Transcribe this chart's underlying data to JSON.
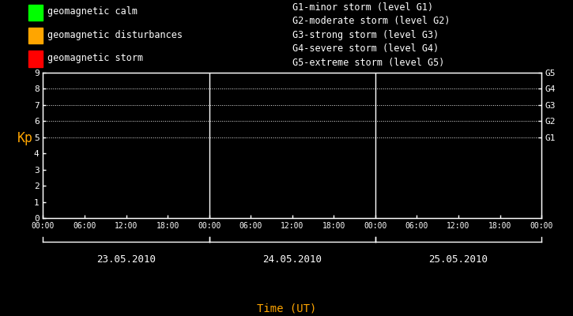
{
  "bg_color": "#000000",
  "fg_color": "#ffffff",
  "orange_color": "#FFA500",
  "dates": [
    "23.05.2010",
    "24.05.2010",
    "25.05.2010"
  ],
  "time_ticks": [
    "00:00",
    "06:00",
    "12:00",
    "18:00"
  ],
  "ylim": [
    0,
    9
  ],
  "yticks": [
    0,
    1,
    2,
    3,
    4,
    5,
    6,
    7,
    8,
    9
  ],
  "legend_items": [
    {
      "label": "geomagnetic calm",
      "color": "#00ff00"
    },
    {
      "label": "geomagnetic disturbances",
      "color": "#ffa500"
    },
    {
      "label": "geomagnetic storm",
      "color": "#ff0000"
    }
  ],
  "right_labels": [
    {
      "y": 5,
      "text": "G1"
    },
    {
      "y": 6,
      "text": "G2"
    },
    {
      "y": 7,
      "text": "G3"
    },
    {
      "y": 8,
      "text": "G4"
    },
    {
      "y": 9,
      "text": "G5"
    }
  ],
  "storm_levels": [
    {
      "text": "G1-minor storm (level G1)"
    },
    {
      "text": "G2-moderate storm (level G2)"
    },
    {
      "text": "G3-strong storm (level G3)"
    },
    {
      "text": "G4-severe storm (level G4)"
    },
    {
      "text": "G5-extreme storm (level G5)"
    }
  ],
  "xlabel": "Time (UT)",
  "ylabel": "Kp",
  "num_days": 3,
  "ticks_per_day": 4,
  "dotted_levels": [
    5,
    6,
    7,
    8,
    9
  ],
  "font_family": "monospace",
  "legend_fontsize": 8.5,
  "axis_fontsize": 8,
  "date_fontsize": 9,
  "xlabel_fontsize": 10,
  "ylabel_fontsize": 12
}
